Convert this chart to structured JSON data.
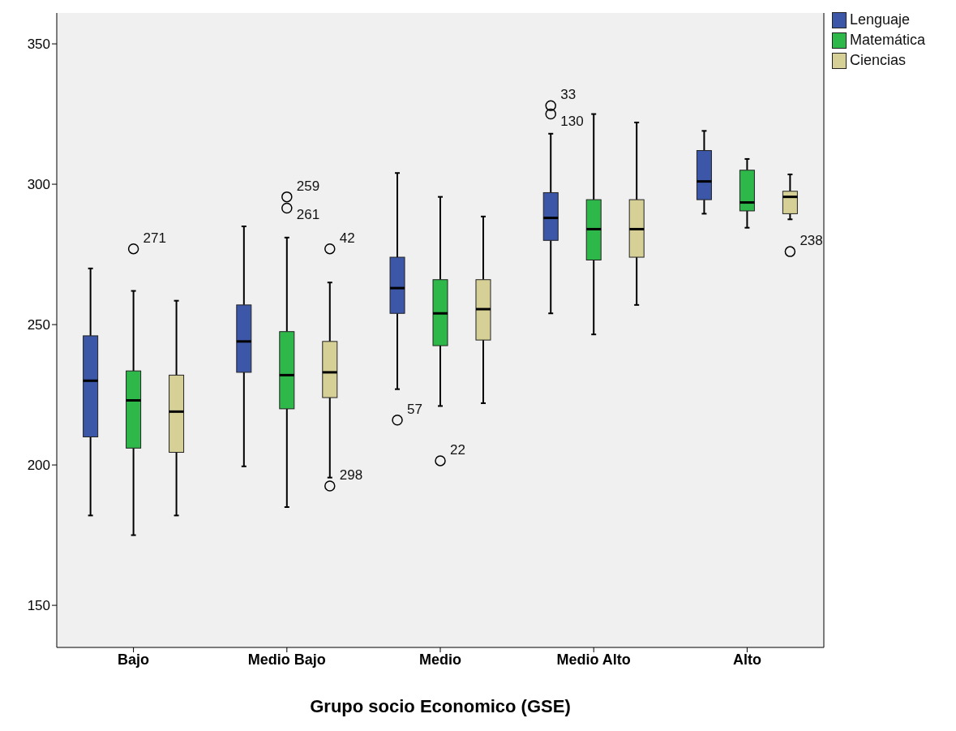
{
  "chart_data": {
    "type": "box",
    "xlabel": "Grupo socio Economico (GSE)",
    "categories": [
      "Bajo",
      "Medio Bajo",
      "Medio",
      "Medio Alto",
      "Alto"
    ],
    "ylim": [
      135,
      361
    ],
    "yticks": [
      150,
      200,
      250,
      300,
      350
    ],
    "grid": false,
    "legend": "top right",
    "series": [
      {
        "name": "Lenguaje",
        "color": "#3c56a8",
        "boxes": [
          {
            "low": 182,
            "q1": 210,
            "median": 230,
            "q3": 246,
            "high": 270
          },
          {
            "low": 199.5,
            "q1": 233,
            "median": 244,
            "q3": 257,
            "high": 285
          },
          {
            "low": 227,
            "q1": 254,
            "median": 263,
            "q3": 274,
            "high": 304,
            "outliers": [
              216
            ]
          },
          {
            "low": 254,
            "q1": 280,
            "median": 288,
            "q3": 297,
            "high": 318,
            "outliers": [
              328,
              325
            ]
          },
          {
            "low": 289.5,
            "q1": 294.5,
            "median": 301,
            "q3": 312,
            "high": 319
          }
        ]
      },
      {
        "name": "Matemática",
        "color": "#2eb84a",
        "boxes": [
          {
            "low": 175,
            "q1": 206,
            "median": 223,
            "q3": 233.5,
            "high": 262,
            "outliers": [
              277
            ]
          },
          {
            "low": 185,
            "q1": 220,
            "median": 232,
            "q3": 247.5,
            "high": 281,
            "outliers": [
              295.5,
              291.5
            ]
          },
          {
            "low": 221,
            "q1": 242.5,
            "median": 254,
            "q3": 266,
            "high": 295.5,
            "outliers": [
              201.5
            ]
          },
          {
            "low": 246.5,
            "q1": 273,
            "median": 284,
            "q3": 294.5,
            "high": 325
          },
          {
            "low": 284.5,
            "q1": 290.5,
            "median": 293.5,
            "q3": 305,
            "high": 309
          }
        ]
      },
      {
        "name": "Ciencias",
        "color": "#d6d097",
        "boxes": [
          {
            "low": 182,
            "q1": 204.5,
            "median": 219,
            "q3": 232,
            "high": 258.5
          },
          {
            "low": 195.5,
            "q1": 224,
            "median": 233,
            "q3": 244,
            "high": 265,
            "outliers": [
              277,
              192.5
            ]
          },
          {
            "low": 222,
            "q1": 244.5,
            "median": 255.5,
            "q3": 266,
            "high": 288.5
          },
          {
            "low": 257,
            "q1": 274,
            "median": 284,
            "q3": 294.5,
            "high": 322
          },
          {
            "low": 287.5,
            "q1": 289.5,
            "median": 295.5,
            "q3": 297.5,
            "high": 303.5,
            "outliers": [
              276
            ]
          }
        ]
      }
    ],
    "annotations": [
      "271",
      "259",
      "261",
      "42",
      "298",
      "57",
      "22",
      "33",
      "130",
      "238"
    ]
  }
}
